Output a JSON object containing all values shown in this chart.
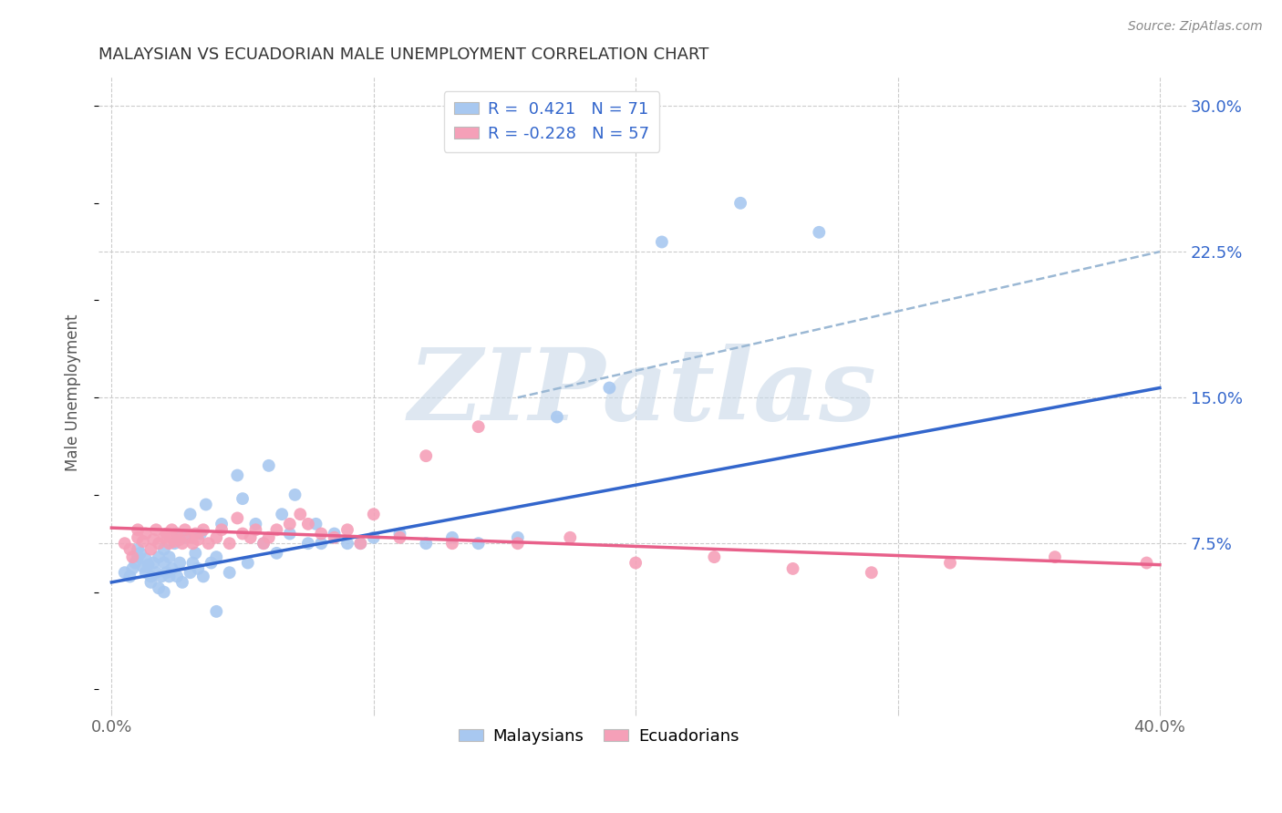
{
  "title": "MALAYSIAN VS ECUADORIAN MALE UNEMPLOYMENT CORRELATION CHART",
  "source": "Source: ZipAtlas.com",
  "ylabel": "Male Unemployment",
  "xlim": [
    -0.005,
    0.41
  ],
  "ylim": [
    -0.01,
    0.315
  ],
  "yticks_right": [
    0.3,
    0.225,
    0.15,
    0.075
  ],
  "ytick_labels_right": [
    "30.0%",
    "22.5%",
    "15.0%",
    "7.5%"
  ],
  "xticks": [
    0.0,
    0.1,
    0.2,
    0.3,
    0.4
  ],
  "xtick_labels": [
    "0.0%",
    "",
    "",
    "",
    "40.0%"
  ],
  "malaysian_color": "#A8C8F0",
  "ecuadorian_color": "#F5A0B8",
  "malaysian_line_color": "#3366CC",
  "ecuadorian_line_color": "#E8608A",
  "dashed_line_color": "#9BB8D4",
  "background_color": "#FFFFFF",
  "watermark_text": "ZIPatlas",
  "watermark_color": "#C8D8E8",
  "legend_R_malaysian": "R =  0.421",
  "legend_N_malaysian": "N = 71",
  "legend_R_ecuadorian": "R = -0.228",
  "legend_N_ecuadorian": "N = 57",
  "malaysian_scatter_x": [
    0.005,
    0.007,
    0.008,
    0.009,
    0.01,
    0.01,
    0.011,
    0.012,
    0.013,
    0.013,
    0.014,
    0.015,
    0.015,
    0.016,
    0.017,
    0.018,
    0.018,
    0.019,
    0.02,
    0.02,
    0.02,
    0.021,
    0.022,
    0.022,
    0.023,
    0.024,
    0.025,
    0.025,
    0.026,
    0.027,
    0.028,
    0.03,
    0.03,
    0.031,
    0.032,
    0.033,
    0.034,
    0.035,
    0.036,
    0.038,
    0.04,
    0.04,
    0.042,
    0.045,
    0.048,
    0.05,
    0.052,
    0.055,
    0.058,
    0.06,
    0.063,
    0.065,
    0.068,
    0.07,
    0.075,
    0.078,
    0.08,
    0.085,
    0.09,
    0.095,
    0.1,
    0.11,
    0.12,
    0.13,
    0.14,
    0.155,
    0.17,
    0.19,
    0.21,
    0.24,
    0.27
  ],
  "malaysian_scatter_y": [
    0.06,
    0.058,
    0.062,
    0.065,
    0.068,
    0.072,
    0.07,
    0.063,
    0.067,
    0.06,
    0.064,
    0.055,
    0.058,
    0.065,
    0.06,
    0.052,
    0.068,
    0.058,
    0.05,
    0.065,
    0.072,
    0.06,
    0.058,
    0.068,
    0.062,
    0.075,
    0.058,
    0.08,
    0.065,
    0.055,
    0.078,
    0.06,
    0.09,
    0.065,
    0.07,
    0.062,
    0.08,
    0.058,
    0.095,
    0.065,
    0.04,
    0.068,
    0.085,
    0.06,
    0.11,
    0.098,
    0.065,
    0.085,
    0.075,
    0.115,
    0.07,
    0.09,
    0.08,
    0.1,
    0.075,
    0.085,
    0.075,
    0.08,
    0.075,
    0.075,
    0.078,
    0.08,
    0.075,
    0.078,
    0.075,
    0.078,
    0.14,
    0.155,
    0.23,
    0.25,
    0.235
  ],
  "ecuadorian_scatter_x": [
    0.005,
    0.007,
    0.008,
    0.01,
    0.01,
    0.012,
    0.013,
    0.015,
    0.016,
    0.017,
    0.018,
    0.02,
    0.021,
    0.022,
    0.023,
    0.024,
    0.025,
    0.026,
    0.027,
    0.028,
    0.03,
    0.031,
    0.032,
    0.033,
    0.035,
    0.037,
    0.04,
    0.042,
    0.045,
    0.048,
    0.05,
    0.053,
    0.055,
    0.058,
    0.06,
    0.063,
    0.068,
    0.072,
    0.075,
    0.08,
    0.085,
    0.09,
    0.095,
    0.1,
    0.11,
    0.12,
    0.13,
    0.14,
    0.155,
    0.175,
    0.2,
    0.23,
    0.26,
    0.29,
    0.32,
    0.36,
    0.395
  ],
  "ecuadorian_scatter_y": [
    0.075,
    0.072,
    0.068,
    0.078,
    0.082,
    0.076,
    0.08,
    0.072,
    0.077,
    0.082,
    0.075,
    0.078,
    0.08,
    0.075,
    0.082,
    0.076,
    0.08,
    0.077,
    0.075,
    0.082,
    0.078,
    0.075,
    0.08,
    0.077,
    0.082,
    0.075,
    0.078,
    0.082,
    0.075,
    0.088,
    0.08,
    0.078,
    0.082,
    0.075,
    0.078,
    0.082,
    0.085,
    0.09,
    0.085,
    0.08,
    0.078,
    0.082,
    0.075,
    0.09,
    0.078,
    0.12,
    0.075,
    0.135,
    0.075,
    0.078,
    0.065,
    0.068,
    0.062,
    0.06,
    0.065,
    0.068,
    0.065
  ],
  "malaysian_trend_x": [
    0.0,
    0.4
  ],
  "malaysian_trend_y": [
    0.055,
    0.155
  ],
  "ecuadorian_trend_x": [
    0.0,
    0.4
  ],
  "ecuadorian_trend_y": [
    0.083,
    0.064
  ],
  "dashed_trend_x": [
    0.155,
    0.4
  ],
  "dashed_trend_y": [
    0.15,
    0.225
  ]
}
